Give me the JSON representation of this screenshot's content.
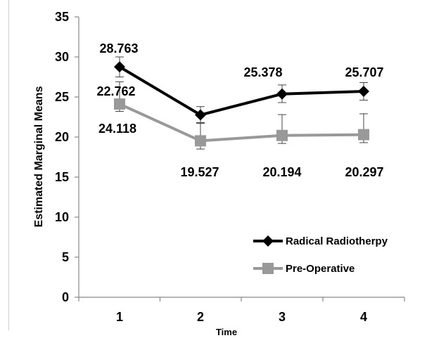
{
  "chart_data": {
    "type": "line",
    "title": "",
    "xlabel": "Time",
    "ylabel": "Estimated Marginal Means",
    "categories": [
      "1",
      "2",
      "3",
      "4"
    ],
    "ylim": [
      0,
      35
    ],
    "yticks": [
      0,
      5,
      10,
      15,
      20,
      25,
      30,
      35
    ],
    "grid": false,
    "legend_position": "bottom-right",
    "series": [
      {
        "name": "Radical Radiotherpy",
        "color": "#000000",
        "marker": "diamond",
        "values": [
          28.763,
          22.762,
          25.378,
          25.707
        ],
        "value_labels": [
          "28.763",
          "22.762",
          "25.378",
          "25.707"
        ],
        "error_upper": [
          30.0,
          23.8,
          26.5,
          26.8
        ],
        "error_lower": [
          27.5,
          21.7,
          24.3,
          24.6
        ]
      },
      {
        "name": "Pre-Operative",
        "color": "#999999",
        "marker": "square",
        "values": [
          24.118,
          19.527,
          20.194,
          20.297
        ],
        "value_labels": [
          "24.118",
          "19.527",
          "20.194",
          "20.297"
        ],
        "error_upper": [
          26.9,
          21.8,
          22.8,
          22.9
        ],
        "error_lower": [
          23.2,
          18.5,
          19.2,
          19.3
        ]
      }
    ]
  }
}
